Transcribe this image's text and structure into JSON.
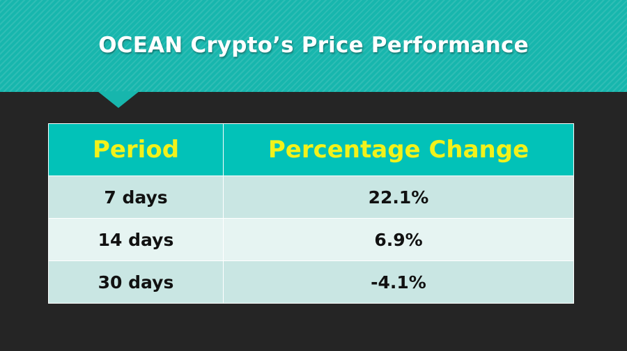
{
  "slide": {
    "title": "OCEAN Crypto’s Price Performance"
  },
  "table": {
    "headers": [
      "Period",
      "Percentage Change"
    ],
    "rows": [
      {
        "period": "7 days",
        "change": "22.1%"
      },
      {
        "period": "14 days",
        "change": "6.9%"
      },
      {
        "period": "30 days",
        "change": "-4.1%"
      }
    ]
  },
  "colors": {
    "banner": "#17b6ad",
    "header_bg": "#02c2b8",
    "header_text": "#f2f21a",
    "row_odd": "#c9e6e3",
    "row_even": "#e6f4f2",
    "background": "#252525"
  }
}
